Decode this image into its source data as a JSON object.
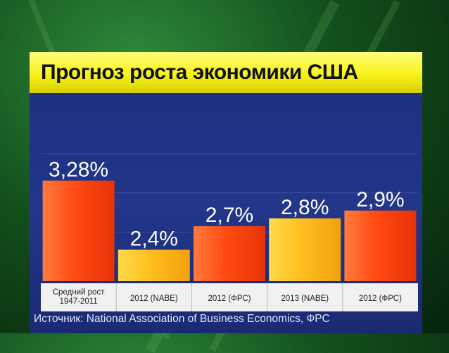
{
  "title": "Прогноз роста экономики США",
  "source": "Источник: National Association of Business Economics, ФРС",
  "colors": {
    "red": "#ff4a12",
    "orange": "#ffbf1e",
    "panel": "#1f3282",
    "title_bg": "#f5ef1c"
  },
  "chart_data": {
    "type": "bar",
    "title": "Прогноз роста экономики США",
    "categories": [
      "Средний рост 1947-2011",
      "2012 (NABE)",
      "2012 (ФРС)",
      "2013 (NABE)",
      "2012 (ФРС)"
    ],
    "values": [
      3.28,
      2.4,
      2.7,
      2.8,
      2.9
    ],
    "value_labels": [
      "3,28%",
      "2,4%",
      "2,7%",
      "2,8%",
      "2,9%"
    ],
    "bar_colors": [
      "#ff4a12",
      "#ffbf1e",
      "#ff4a12",
      "#ffbf1e",
      "#ff4a12"
    ],
    "ylim": [
      2,
      3.5
    ],
    "grid": true
  }
}
